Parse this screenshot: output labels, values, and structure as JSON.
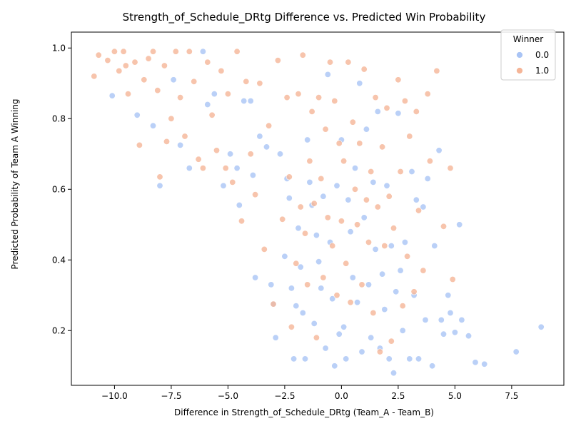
{
  "chart_data": {
    "type": "scatter",
    "title": "Strength_of_Schedule_DRtg Difference vs. Predicted Win Probability",
    "xlabel": "Difference in Strength_of_Schedule_DRtg (Team_A - Team_B)",
    "ylabel": "Predicted Probability of Team A Winning",
    "xlim": [
      -11.9,
      9.8
    ],
    "ylim": [
      0.045,
      1.045
    ],
    "xticks": [
      -10.0,
      -7.5,
      -5.0,
      -2.5,
      0.0,
      2.5,
      5.0,
      7.5
    ],
    "xtick_labels": [
      "−10.0",
      "−7.5",
      "−5.0",
      "−2.5",
      "0.0",
      "2.5",
      "5.0",
      "7.5"
    ],
    "yticks": [
      0.2,
      0.4,
      0.6,
      0.8,
      1.0
    ],
    "ytick_labels": [
      "0.2",
      "0.4",
      "0.6",
      "0.8",
      "1.0"
    ],
    "grid": false,
    "legend": {
      "title": "Winner",
      "position": "top-right",
      "entries": [
        {
          "label": "0.0",
          "color": "#a9c4f5"
        },
        {
          "label": "1.0",
          "color": "#f5b597"
        }
      ]
    },
    "colors": {
      "0.0": "#a9c4f5",
      "1.0": "#f5b597"
    },
    "series": [
      {
        "name": "0.0",
        "color": "#a9c4f5",
        "points": [
          [
            -10.1,
            0.865
          ],
          [
            -9.0,
            0.81
          ],
          [
            -8.3,
            0.78
          ],
          [
            -8.0,
            0.61
          ],
          [
            -7.4,
            0.91
          ],
          [
            -7.1,
            0.725
          ],
          [
            -6.7,
            0.66
          ],
          [
            -6.1,
            0.99
          ],
          [
            -5.9,
            0.84
          ],
          [
            -5.6,
            0.87
          ],
          [
            -5.2,
            0.61
          ],
          [
            -4.9,
            0.7
          ],
          [
            -4.6,
            0.66
          ],
          [
            -4.5,
            0.555
          ],
          [
            -4.3,
            0.85
          ],
          [
            -4.0,
            0.85
          ],
          [
            -3.9,
            0.64
          ],
          [
            -3.8,
            0.35
          ],
          [
            -3.6,
            0.75
          ],
          [
            -3.3,
            0.72
          ],
          [
            -3.1,
            0.33
          ],
          [
            -3.0,
            0.275
          ],
          [
            -2.9,
            0.18
          ],
          [
            -2.7,
            0.7
          ],
          [
            -2.5,
            0.41
          ],
          [
            -2.4,
            0.63
          ],
          [
            -2.3,
            0.575
          ],
          [
            -2.2,
            0.32
          ],
          [
            -2.1,
            0.12
          ],
          [
            -2.0,
            0.27
          ],
          [
            -1.9,
            0.49
          ],
          [
            -1.8,
            0.38
          ],
          [
            -1.7,
            0.25
          ],
          [
            -1.6,
            0.12
          ],
          [
            -1.5,
            0.74
          ],
          [
            -1.4,
            0.62
          ],
          [
            -1.3,
            0.555
          ],
          [
            -1.2,
            0.22
          ],
          [
            -1.1,
            0.47
          ],
          [
            -1.0,
            0.395
          ],
          [
            -0.9,
            0.32
          ],
          [
            -0.8,
            0.58
          ],
          [
            -0.7,
            0.15
          ],
          [
            -0.6,
            0.925
          ],
          [
            -0.5,
            0.45
          ],
          [
            -0.4,
            0.29
          ],
          [
            -0.3,
            0.1
          ],
          [
            -0.2,
            0.61
          ],
          [
            -0.1,
            0.19
          ],
          [
            0.0,
            0.74
          ],
          [
            0.1,
            0.21
          ],
          [
            0.2,
            0.12
          ],
          [
            0.3,
            0.57
          ],
          [
            0.4,
            0.48
          ],
          [
            0.5,
            0.35
          ],
          [
            0.6,
            0.66
          ],
          [
            0.7,
            0.28
          ],
          [
            0.8,
            0.9
          ],
          [
            0.9,
            0.14
          ],
          [
            1.0,
            0.52
          ],
          [
            1.1,
            0.77
          ],
          [
            1.2,
            0.33
          ],
          [
            1.3,
            0.18
          ],
          [
            1.4,
            0.62
          ],
          [
            1.5,
            0.43
          ],
          [
            1.6,
            0.82
          ],
          [
            1.7,
            0.15
          ],
          [
            1.8,
            0.36
          ],
          [
            1.9,
            0.26
          ],
          [
            2.0,
            0.61
          ],
          [
            2.1,
            0.12
          ],
          [
            2.2,
            0.44
          ],
          [
            2.3,
            0.08
          ],
          [
            2.4,
            0.31
          ],
          [
            2.5,
            0.815
          ],
          [
            2.6,
            0.37
          ],
          [
            2.7,
            0.2
          ],
          [
            2.8,
            0.45
          ],
          [
            3.0,
            0.12
          ],
          [
            3.1,
            0.65
          ],
          [
            3.2,
            0.3
          ],
          [
            3.3,
            0.57
          ],
          [
            3.4,
            0.12
          ],
          [
            3.6,
            0.55
          ],
          [
            3.7,
            0.23
          ],
          [
            3.8,
            0.63
          ],
          [
            4.0,
            0.1
          ],
          [
            4.1,
            0.44
          ],
          [
            4.3,
            0.71
          ],
          [
            4.4,
            0.23
          ],
          [
            4.5,
            0.19
          ],
          [
            4.7,
            0.3
          ],
          [
            4.8,
            0.25
          ],
          [
            5.0,
            0.195
          ],
          [
            5.2,
            0.5
          ],
          [
            5.3,
            0.23
          ],
          [
            5.6,
            0.185
          ],
          [
            5.9,
            0.11
          ],
          [
            6.3,
            0.105
          ],
          [
            7.7,
            0.14
          ],
          [
            8.8,
            0.21
          ]
        ]
      },
      {
        "name": "1.0",
        "color": "#f5b597",
        "points": [
          [
            -10.9,
            0.92
          ],
          [
            -10.7,
            0.98
          ],
          [
            -10.3,
            0.965
          ],
          [
            -10.0,
            0.99
          ],
          [
            -9.8,
            0.935
          ],
          [
            -9.6,
            0.99
          ],
          [
            -9.5,
            0.95
          ],
          [
            -9.4,
            0.87
          ],
          [
            -9.1,
            0.96
          ],
          [
            -8.9,
            0.725
          ],
          [
            -8.7,
            0.91
          ],
          [
            -8.5,
            0.97
          ],
          [
            -8.3,
            0.99
          ],
          [
            -8.1,
            0.88
          ],
          [
            -8.0,
            0.635
          ],
          [
            -7.8,
            0.95
          ],
          [
            -7.7,
            0.735
          ],
          [
            -7.5,
            0.8
          ],
          [
            -7.3,
            0.99
          ],
          [
            -7.1,
            0.86
          ],
          [
            -6.9,
            0.75
          ],
          [
            -6.7,
            0.99
          ],
          [
            -6.5,
            0.905
          ],
          [
            -6.3,
            0.685
          ],
          [
            -6.1,
            0.66
          ],
          [
            -5.9,
            0.96
          ],
          [
            -5.7,
            0.81
          ],
          [
            -5.5,
            0.71
          ],
          [
            -5.3,
            0.935
          ],
          [
            -5.1,
            0.66
          ],
          [
            -5.0,
            0.87
          ],
          [
            -4.8,
            0.62
          ],
          [
            -4.6,
            0.99
          ],
          [
            -4.4,
            0.51
          ],
          [
            -4.2,
            0.905
          ],
          [
            -4.0,
            0.7
          ],
          [
            -3.8,
            0.585
          ],
          [
            -3.6,
            0.9
          ],
          [
            -3.4,
            0.43
          ],
          [
            -3.2,
            0.78
          ],
          [
            -3.0,
            0.275
          ],
          [
            -2.8,
            0.965
          ],
          [
            -2.6,
            0.515
          ],
          [
            -2.4,
            0.86
          ],
          [
            -2.3,
            0.635
          ],
          [
            -2.2,
            0.21
          ],
          [
            -2.0,
            0.39
          ],
          [
            -1.9,
            0.87
          ],
          [
            -1.8,
            0.55
          ],
          [
            -1.7,
            0.98
          ],
          [
            -1.6,
            0.475
          ],
          [
            -1.5,
            0.33
          ],
          [
            -1.4,
            0.68
          ],
          [
            -1.3,
            0.82
          ],
          [
            -1.2,
            0.56
          ],
          [
            -1.1,
            0.18
          ],
          [
            -1.0,
            0.86
          ],
          [
            -0.9,
            0.63
          ],
          [
            -0.8,
            0.35
          ],
          [
            -0.7,
            0.77
          ],
          [
            -0.6,
            0.52
          ],
          [
            -0.5,
            0.96
          ],
          [
            -0.4,
            0.44
          ],
          [
            -0.3,
            0.85
          ],
          [
            -0.2,
            0.3
          ],
          [
            -0.1,
            0.73
          ],
          [
            0.0,
            0.51
          ],
          [
            0.1,
            0.68
          ],
          [
            0.2,
            0.39
          ],
          [
            0.3,
            0.96
          ],
          [
            0.4,
            0.28
          ],
          [
            0.5,
            0.79
          ],
          [
            0.6,
            0.6
          ],
          [
            0.7,
            0.5
          ],
          [
            0.8,
            0.73
          ],
          [
            0.9,
            0.33
          ],
          [
            1.0,
            0.94
          ],
          [
            1.1,
            0.57
          ],
          [
            1.2,
            0.45
          ],
          [
            1.3,
            0.65
          ],
          [
            1.4,
            0.25
          ],
          [
            1.5,
            0.86
          ],
          [
            1.6,
            0.55
          ],
          [
            1.7,
            0.14
          ],
          [
            1.8,
            0.72
          ],
          [
            1.9,
            0.44
          ],
          [
            2.0,
            0.83
          ],
          [
            2.1,
            0.58
          ],
          [
            2.2,
            0.17
          ],
          [
            2.3,
            0.49
          ],
          [
            2.5,
            0.91
          ],
          [
            2.6,
            0.65
          ],
          [
            2.7,
            0.27
          ],
          [
            2.8,
            0.85
          ],
          [
            2.9,
            0.41
          ],
          [
            3.0,
            0.75
          ],
          [
            3.2,
            0.31
          ],
          [
            3.3,
            0.82
          ],
          [
            3.4,
            0.54
          ],
          [
            3.6,
            0.37
          ],
          [
            3.8,
            0.87
          ],
          [
            3.9,
            0.68
          ],
          [
            4.2,
            0.935
          ],
          [
            4.5,
            0.495
          ],
          [
            4.9,
            0.345
          ],
          [
            4.8,
            0.66
          ]
        ]
      }
    ]
  }
}
